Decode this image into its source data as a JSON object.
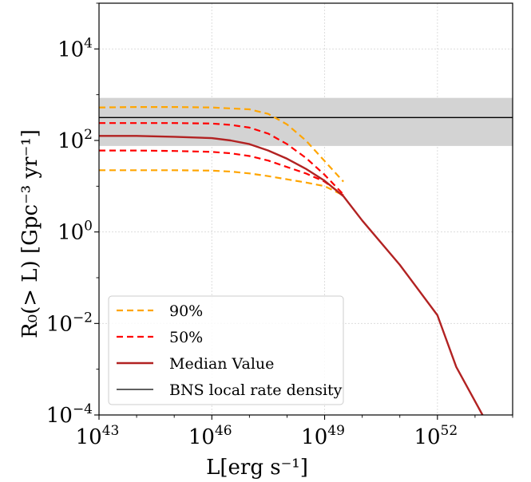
{
  "chart_data": {
    "type": "line",
    "xlabel": "L[erg s⁻¹]",
    "ylabel": "R₀(> L) [Gpc⁻³ yr⁻¹]",
    "xscale": "log",
    "yscale": "log",
    "xlim_log10": [
      43,
      54
    ],
    "ylim_log10": [
      -4,
      5
    ],
    "x_ticks": [
      {
        "exp": 43,
        "base": "10",
        "sup": "43"
      },
      {
        "exp": 46,
        "base": "10",
        "sup": "46"
      },
      {
        "exp": 49,
        "base": "10",
        "sup": "49"
      },
      {
        "exp": 52,
        "base": "10",
        "sup": "52"
      }
    ],
    "y_ticks": [
      {
        "exp": -4,
        "base": "10",
        "sup": "−4"
      },
      {
        "exp": -2,
        "base": "10",
        "sup": "−2"
      },
      {
        "exp": 0,
        "base": "10",
        "sup": "0"
      },
      {
        "exp": 2,
        "base": "10",
        "sup": "2"
      },
      {
        "exp": 4,
        "base": "10",
        "sup": "4"
      }
    ],
    "grid": true,
    "band": {
      "ylow_log10": 1.88,
      "yhigh_log10": 2.93,
      "color": "#d3d3d3"
    },
    "hline": {
      "y_log10": 2.5,
      "color": "#000000"
    },
    "series": [
      {
        "name": "90%",
        "color": "#ffa500",
        "style": "dashed",
        "width": 2.2,
        "log_points": [
          [
            43,
            2.72
          ],
          [
            44,
            2.73
          ],
          [
            45,
            2.73
          ],
          [
            46,
            2.72
          ],
          [
            47,
            2.68
          ],
          [
            47.5,
            2.58
          ],
          [
            48,
            2.35
          ],
          [
            48.5,
            2.0
          ],
          [
            49,
            1.55
          ],
          [
            49.5,
            1.1
          ]
        ]
      },
      {
        "name": "",
        "color": "#ffa500",
        "style": "dashed",
        "width": 2.2,
        "log_points": [
          [
            43,
            1.35
          ],
          [
            44,
            1.35
          ],
          [
            45,
            1.35
          ],
          [
            46,
            1.34
          ],
          [
            46.5,
            1.32
          ],
          [
            47,
            1.28
          ],
          [
            47.5,
            1.22
          ],
          [
            48,
            1.15
          ],
          [
            48.5,
            1.08
          ],
          [
            49,
            1.0
          ],
          [
            49.5,
            0.8
          ]
        ]
      },
      {
        "name": "50%",
        "color": "#ff0000",
        "style": "dashed",
        "width": 2.2,
        "log_points": [
          [
            43,
            2.38
          ],
          [
            44,
            2.38
          ],
          [
            45,
            2.38
          ],
          [
            46,
            2.37
          ],
          [
            46.5,
            2.34
          ],
          [
            47,
            2.28
          ],
          [
            47.5,
            2.15
          ],
          [
            48,
            1.92
          ],
          [
            48.5,
            1.62
          ],
          [
            49,
            1.25
          ],
          [
            49.5,
            0.82
          ]
        ]
      },
      {
        "name": "",
        "color": "#ff0000",
        "style": "dashed",
        "width": 2.2,
        "log_points": [
          [
            43,
            1.78
          ],
          [
            44,
            1.78
          ],
          [
            45,
            1.77
          ],
          [
            46,
            1.75
          ],
          [
            46.5,
            1.72
          ],
          [
            47,
            1.66
          ],
          [
            47.5,
            1.56
          ],
          [
            48,
            1.42
          ],
          [
            48.5,
            1.28
          ],
          [
            49,
            1.1
          ],
          [
            49.5,
            0.8
          ]
        ]
      },
      {
        "name": "Median Value",
        "color": "#b22222",
        "style": "solid",
        "width": 2.4,
        "log_points": [
          [
            43,
            2.1
          ],
          [
            44,
            2.1
          ],
          [
            45,
            2.08
          ],
          [
            46,
            2.05
          ],
          [
            46.5,
            2.0
          ],
          [
            47,
            1.92
          ],
          [
            47.5,
            1.78
          ],
          [
            48,
            1.6
          ],
          [
            48.5,
            1.38
          ],
          [
            49,
            1.12
          ],
          [
            49.5,
            0.78
          ],
          [
            50,
            0.25
          ],
          [
            51,
            -0.72
          ],
          [
            52,
            -1.82
          ],
          [
            52.5,
            -2.95
          ],
          [
            53.2,
            -4.0
          ]
        ]
      }
    ],
    "legend_entries": [
      {
        "label": "90%",
        "color": "#ffa500",
        "style": "dashed",
        "width": 2.2
      },
      {
        "label": "50%",
        "color": "#ff0000",
        "style": "dashed",
        "width": 2.2
      },
      {
        "label": "Median Value",
        "color": "#b22222",
        "style": "solid",
        "width": 2.4
      },
      {
        "label": "BNS local rate density",
        "color": "#000000",
        "style": "solid",
        "width": 1.3
      }
    ],
    "legend_position": "lower-left"
  }
}
